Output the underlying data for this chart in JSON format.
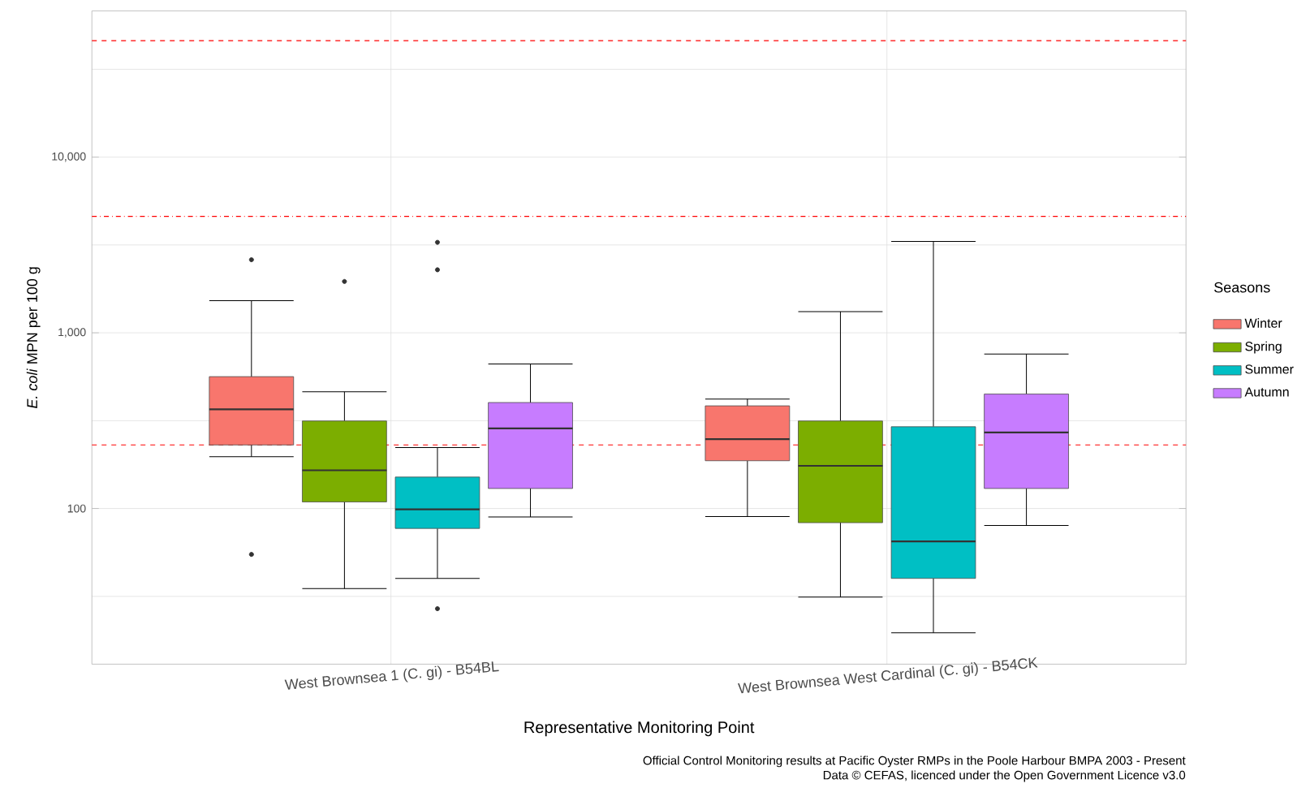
{
  "chart_data": {
    "type": "box",
    "xlabel": "Representative Monitoring Point",
    "ylabel": "*E. coli* MPN per 100 g",
    "legend_title": "Seasons",
    "legend": "right",
    "grid": true,
    "log": "y",
    "categories": [
      "West Brownsea 1 (C. gi) - B54BL",
      "West Brownsea West Cardinal (C. gi) - B54CK"
    ],
    "ylim": [
      13,
      68000
    ],
    "yticks": [
      100,
      {
        "value": 1000,
        "label": "1,000"
      },
      {
        "value": 10000,
        "label": "10,000"
      },
      {
        "value": 31.6,
        "label": null
      },
      {
        "value": 316,
        "label": null
      },
      {
        "value": 3162,
        "label": null
      },
      {
        "value": 31623,
        "label": null
      }
    ],
    "series": [
      {
        "name": "Winter",
        "color": "#f8766d",
        "boxes": [
          {
            "low": 197,
            "q1": 230,
            "median": 367,
            "q3": 563,
            "high": 1524,
            "outliers": [
              54.8,
              2606
            ]
          },
          {
            "low": 90,
            "q1": 187,
            "median": 248,
            "q3": 384,
            "high": 419
          }
        ]
      },
      {
        "name": "Spring",
        "color": "#7cae00",
        "boxes": [
          {
            "low": 35,
            "q1": 109,
            "median": 165,
            "q3": 315,
            "high": 462,
            "outliers": [
              1960
            ]
          },
          {
            "low": 31.3,
            "q1": 83,
            "median": 175,
            "q3": 315,
            "high": 1321
          }
        ]
      },
      {
        "name": "Summer",
        "color": "#00bfc4",
        "boxes": [
          {
            "low": 40,
            "q1": 77,
            "median": 99,
            "q3": 151,
            "high": 222,
            "outliers": [
              26.9,
              2284,
              3273
            ]
          },
          {
            "low": 19.6,
            "q1": 40,
            "median": 65,
            "q3": 292,
            "high": 3311
          }
        ]
      },
      {
        "name": "Autumn",
        "color": "#c77cff",
        "boxes": [
          {
            "low": 89.6,
            "q1": 130,
            "median": 286,
            "q3": 401,
            "high": 664
          },
          {
            "low": 80,
            "q1": 130,
            "median": 271,
            "q3": 448,
            "high": 757
          }
        ]
      }
    ],
    "ref_lines": [
      {
        "axis": "y",
        "value": 46000,
        "color": "#ff0000",
        "line_style": "dashed"
      },
      {
        "axis": "y",
        "value": 4600,
        "color": "#ff0000",
        "line_style": "dashdot"
      },
      {
        "axis": "y",
        "value": 230,
        "color": "#ff0000",
        "line_style": "dashed"
      }
    ],
    "annotations": [
      "Official Control Monitoring results at Pacific Oyster RMPs in the Poole Harbour BMPA 2003 - Present",
      "Data © CEFAS, licenced under the Open Government Licence v3.0"
    ]
  }
}
